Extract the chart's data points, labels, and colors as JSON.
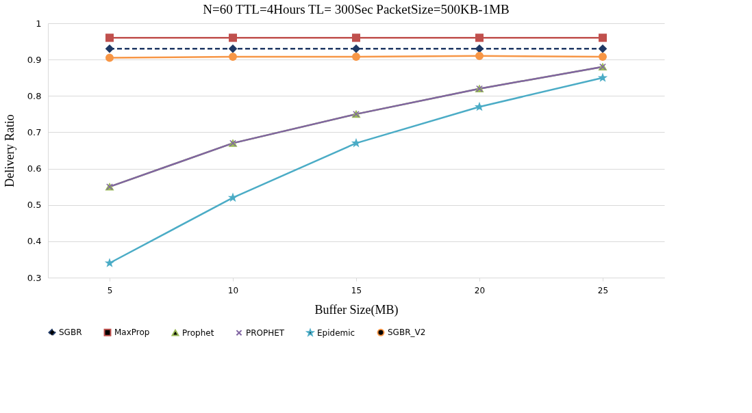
{
  "chart_data": {
    "type": "line",
    "title": "N=60   TTL=4Hours   TL= 300Sec   PacketSize=500KB-1MB",
    "xlabel": "Buffer  Size(MB)",
    "ylabel": "Delivery  Ratio",
    "categories": [
      "5",
      "10",
      "15",
      "20",
      "25"
    ],
    "ylim": [
      0.3,
      1
    ],
    "yticks": [
      0.3,
      0.4,
      0.5,
      0.6,
      0.7,
      0.8,
      0.9,
      1
    ],
    "grid": "y",
    "legend": "bottom",
    "series": [
      {
        "name": "SGBR",
        "color": "#1f3864",
        "marker": "diamond",
        "line_style": "dashed",
        "values": [
          0.93,
          0.93,
          0.93,
          0.93,
          0.93
        ]
      },
      {
        "name": "MaxProp",
        "color": "#c0504d",
        "marker": "square",
        "line_style": "solid",
        "values": [
          0.96,
          0.96,
          0.96,
          0.96,
          0.96
        ]
      },
      {
        "name": "Prophet",
        "color": "#9bbb59",
        "marker": "triangle",
        "line_style": "solid",
        "values": [
          0.55,
          0.67,
          0.75,
          0.82,
          0.88
        ]
      },
      {
        "name": "PROPHET",
        "color": "#8064a2",
        "marker": "cross",
        "line_style": "solid",
        "values": [
          0.55,
          0.67,
          0.75,
          0.82,
          0.88
        ]
      },
      {
        "name": "Epidemic",
        "color": "#4bacc6",
        "marker": "star",
        "line_style": "solid",
        "values": [
          0.34,
          0.52,
          0.67,
          0.77,
          0.85
        ]
      },
      {
        "name": "SGBR_V2",
        "color": "#f79646",
        "marker": "circle",
        "line_style": "solid",
        "values": [
          0.905,
          0.908,
          0.908,
          0.91,
          0.908
        ]
      }
    ]
  }
}
